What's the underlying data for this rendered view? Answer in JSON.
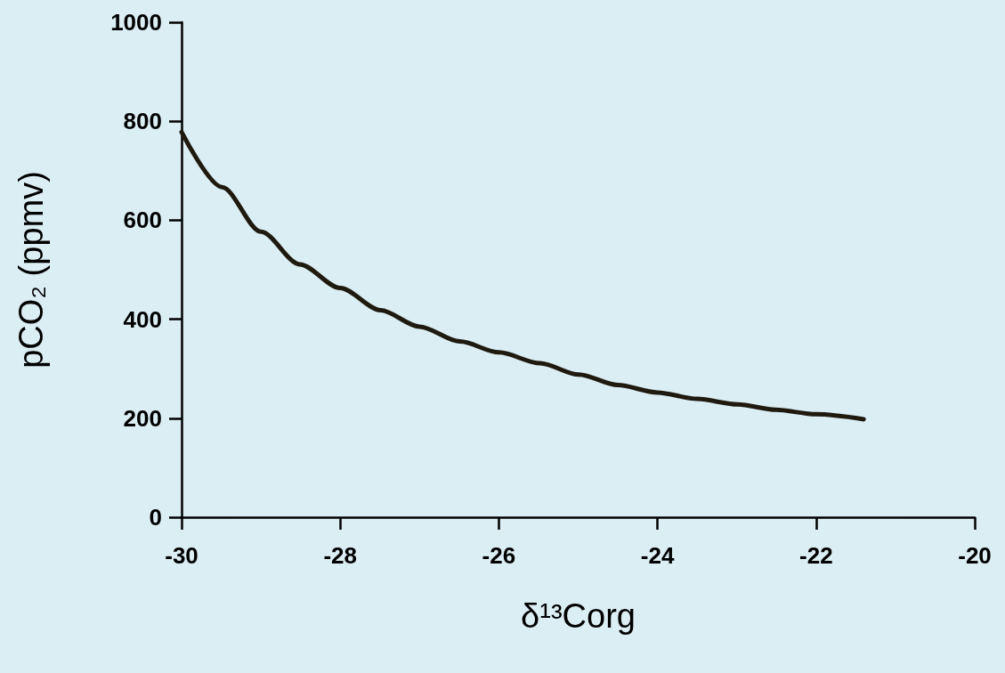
{
  "chart_data": {
    "type": "line",
    "xlabel": "δ¹³Corg",
    "ylabel": "pCO₂ (ppmv)",
    "x": [
      -30,
      -29.49,
      -29.0,
      -28.51,
      -28.0,
      -27.49,
      -27.0,
      -26.49,
      -26.0,
      -25.48,
      -24.99,
      -24.5,
      -24.0,
      -23.5,
      -22.99,
      -22.51,
      -22.0,
      -21.4
    ],
    "series": [
      {
        "color": "#1f1a10",
        "values": [
          778,
          667,
          577,
          511,
          463,
          418,
          385,
          355,
          333,
          311,
          288,
          267,
          252,
          239,
          228,
          217,
          208,
          198
        ]
      }
    ],
    "xlim": [
      -30,
      -20
    ],
    "xticks": [
      -30,
      -28,
      -26,
      -24,
      -22,
      -20
    ],
    "ylim": [
      0,
      1000
    ],
    "yticks": [
      0,
      200,
      400,
      600,
      800,
      1000
    ],
    "marker": "none",
    "line_style": "solid"
  }
}
